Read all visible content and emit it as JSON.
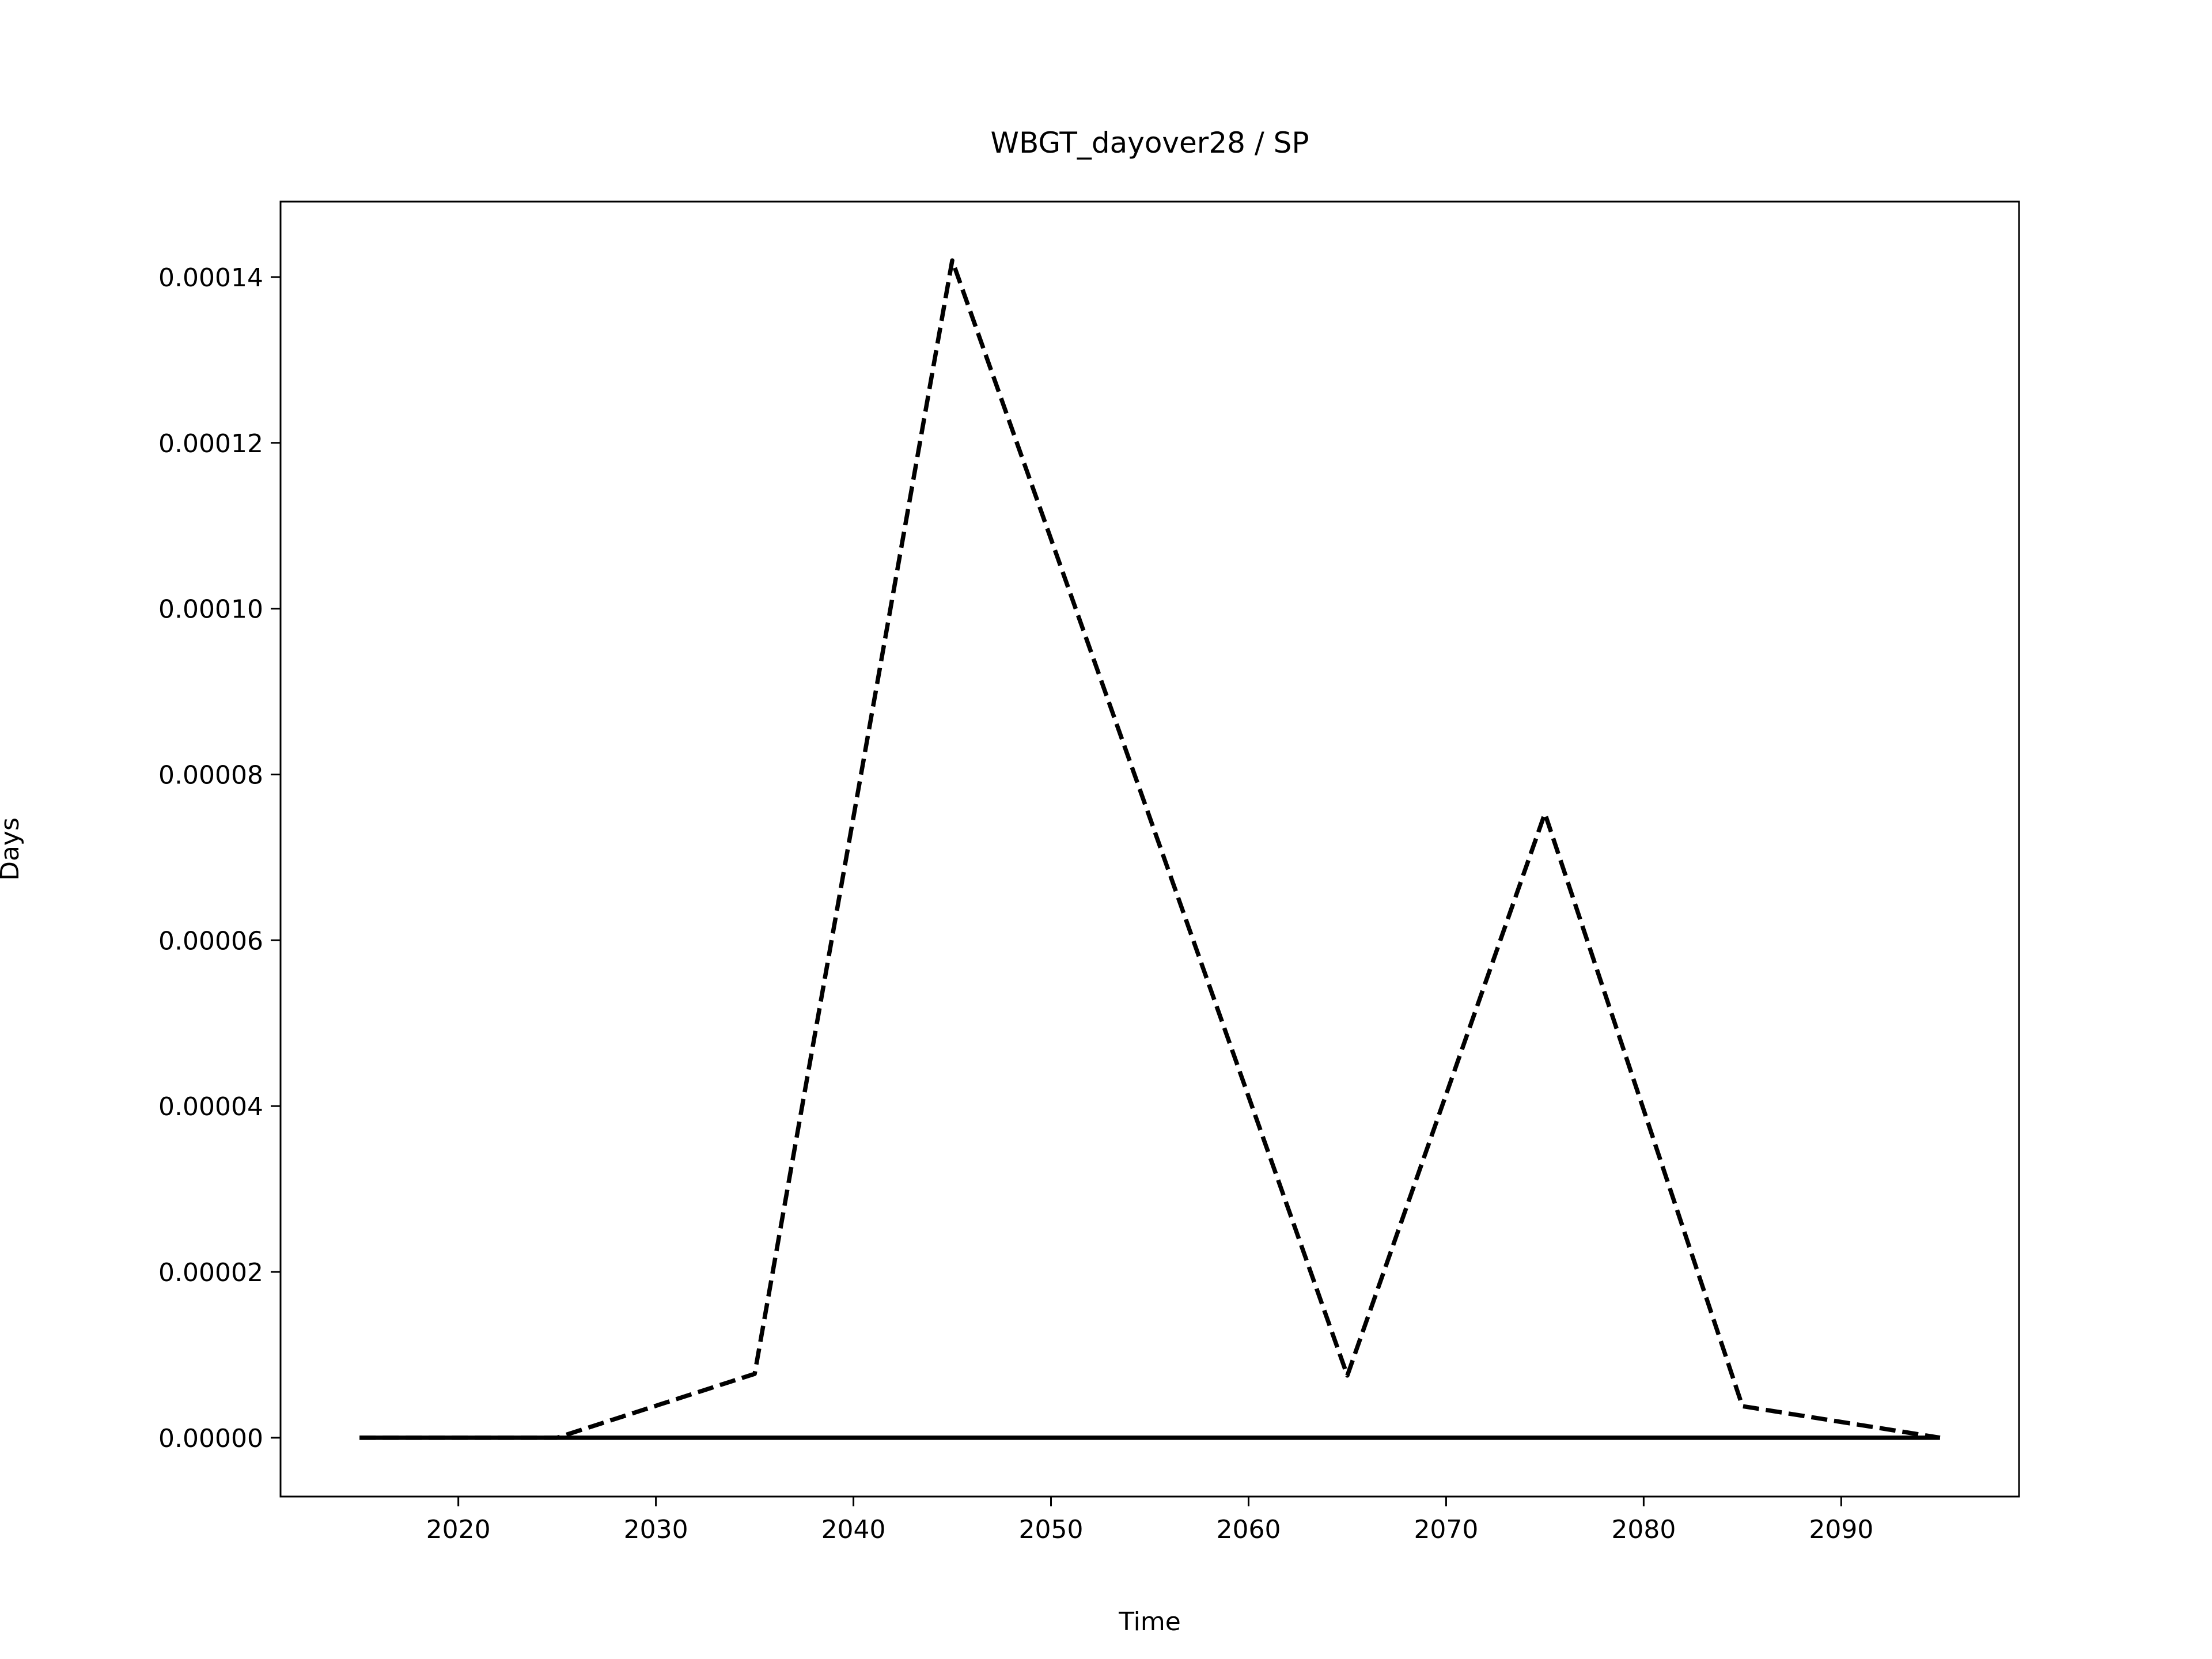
{
  "chart_data": {
    "type": "line",
    "title": "WBGT_dayover28 / SP",
    "xlabel": "Time",
    "ylabel": "Days",
    "x": [
      2015,
      2025,
      2035,
      2045,
      2055,
      2065,
      2075,
      2085,
      2095
    ],
    "series": [
      {
        "color": "#000000",
        "dash": true,
        "values": [
          0,
          0,
          7.7e-06,
          0.000142,
          7.48e-05,
          7.5e-06,
          7.53e-05,
          3.8e-06,
          0
        ]
      },
      {
        "color": "#000000",
        "dash": false,
        "values": [
          0,
          0,
          0,
          0,
          0,
          0,
          0,
          0,
          0
        ]
      }
    ],
    "xlim": [
      2011,
      2099
    ],
    "xticks": [
      2020,
      2030,
      2040,
      2050,
      2060,
      2070,
      2080,
      2090
    ],
    "ylim": [
      -7.1e-06,
      0.0001491
    ],
    "yticks": [
      {
        "value": 0,
        "label": "0.00000"
      },
      {
        "value": 2e-05,
        "label": "0.00002"
      },
      {
        "value": 4e-05,
        "label": "0.00004"
      },
      {
        "value": 6e-05,
        "label": "0.00006"
      },
      {
        "value": 8e-05,
        "label": "0.00008"
      },
      {
        "value": 0.0001,
        "label": "0.00010"
      },
      {
        "value": 0.00012,
        "label": "0.00012"
      },
      {
        "value": 0.00014,
        "label": "0.00014"
      }
    ],
    "grid": false
  }
}
